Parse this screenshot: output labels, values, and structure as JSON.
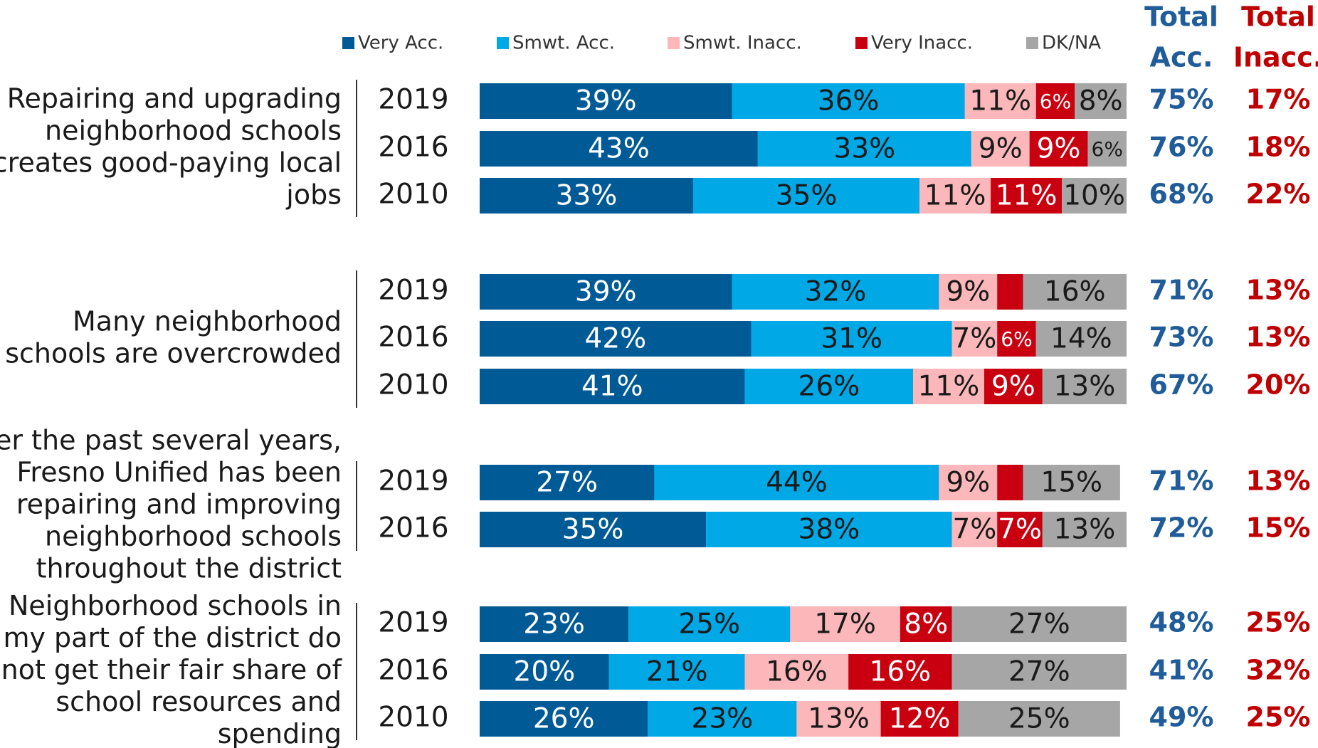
{
  "chart_data": {
    "type": "bar",
    "orientation": "horizontal",
    "stacked": true,
    "xlim": [
      0,
      100
    ],
    "groups": [
      {
        "label": [
          "Repairing and upgrading",
          "neighborhood schools",
          "creates good-paying local",
          "jobs"
        ],
        "rows": 3
      },
      {
        "label": [
          "Many neighborhood",
          "schools are overcrowded"
        ],
        "rows": 3
      },
      {
        "label": [
          "ver the past several years,",
          "Fresno Unified has been",
          "repairing and improving",
          "neighborhood schools",
          "throughout the district"
        ],
        "rows": 2
      },
      {
        "label": [
          "Neighborhood schools in",
          "my part of the district do",
          "not get their fair share of",
          "school resources and",
          "spending"
        ],
        "rows": 3
      }
    ],
    "categories": [
      "2019",
      "2016",
      "2010",
      "2019",
      "2016",
      "2010",
      "2019",
      "2016",
      "2019",
      "2016",
      "2010"
    ],
    "series": [
      {
        "name": "Very Acc.",
        "color": "#005a96",
        "text_color": "#ffffff",
        "values": [
          39,
          43,
          33,
          39,
          42,
          41,
          27,
          35,
          23,
          20,
          26
        ],
        "value_labels": [
          "39%",
          "43%",
          "33%",
          "39%",
          "42%",
          "41%",
          "27%",
          "35%",
          "23%",
          "20%",
          "26%"
        ]
      },
      {
        "name": "Smwt. Acc.",
        "color": "#00a8e6",
        "text_color": "#1a1a1a",
        "values": [
          36,
          33,
          35,
          32,
          31,
          26,
          44,
          38,
          25,
          21,
          23
        ],
        "value_labels": [
          "36%",
          "33%",
          "35%",
          "32%",
          "31%",
          "26%",
          "44%",
          "38%",
          "25%",
          "21%",
          "23%"
        ]
      },
      {
        "name": "Smwt. Inacc.",
        "color": "#fbb7b9",
        "text_color": "#1a1a1a",
        "values": [
          11,
          9,
          11,
          9,
          7,
          11,
          9,
          7,
          17,
          16,
          13
        ],
        "value_labels": [
          "11%",
          "9%",
          "11%",
          "9%",
          "7%",
          "11%",
          "9%",
          "7%",
          "17%",
          "16%",
          "13%"
        ]
      },
      {
        "name": "Very Inacc.",
        "color": "#c8000f",
        "text_color": "#ffffff",
        "values": [
          6,
          9,
          11,
          4,
          6,
          9,
          4,
          7,
          8,
          16,
          12
        ],
        "value_labels": [
          "6%",
          "9%",
          "11%",
          null,
          "6%",
          "9%",
          null,
          "7%",
          "8%",
          "16%",
          "12%"
        ]
      },
      {
        "name": "DK/NA",
        "color": "#a6a6a6",
        "text_color": "#1a1a1a",
        "values": [
          8,
          6,
          10,
          16,
          14,
          13,
          15,
          13,
          27,
          27,
          25
        ],
        "value_labels": [
          "8%",
          "6%",
          "10%",
          "16%",
          "14%",
          "13%",
          "15%",
          "13%",
          "27%",
          "27%",
          "25%"
        ]
      }
    ],
    "totals": [
      {
        "label": [
          "Total",
          "Acc."
        ],
        "color": "#1f5c99",
        "values": [
          75,
          76,
          68,
          71,
          73,
          67,
          71,
          72,
          48,
          41,
          49
        ],
        "value_labels": [
          "75%",
          "76%",
          "68%",
          "71%",
          "73%",
          "67%",
          "71%",
          "72%",
          "48%",
          "41%",
          "49%"
        ]
      },
      {
        "label": [
          "Total",
          "Inacc."
        ],
        "color": "#c00000",
        "values": [
          17,
          18,
          22,
          13,
          13,
          20,
          13,
          15,
          25,
          32,
          25
        ],
        "value_labels": [
          "17%",
          "18%",
          "22%",
          "13%",
          "13%",
          "20%",
          "13%",
          "15%",
          "25%",
          "32%",
          "25%"
        ]
      }
    ]
  }
}
